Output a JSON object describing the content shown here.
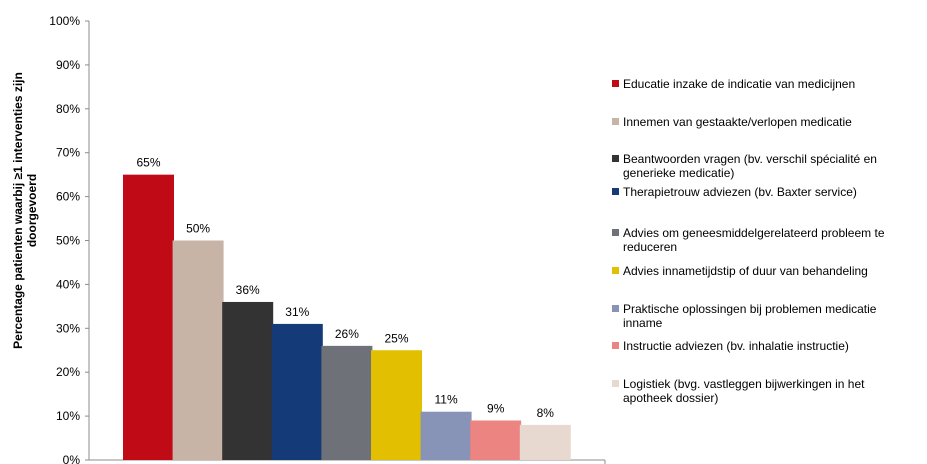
{
  "chart_data": {
    "type": "bar",
    "title": "",
    "xlabel": "",
    "ylabel": "Percentage patienten waarbij ≥1 interventies zijn doorgevoerd",
    "ylim": [
      0,
      100
    ],
    "yticks": [
      "0%",
      "10%",
      "20%",
      "30%",
      "40%",
      "50%",
      "60%",
      "70%",
      "80%",
      "90%",
      "100%"
    ],
    "grid": false,
    "legend_position": "right",
    "categories": [
      "Educatie inzake de indicatie van medicijnen",
      "Innemen van gestaakte/verlopen medicatie",
      "Beantwoorden vragen (bv. verschil spécialité en generieke medicatie)",
      "Therapietrouw adviezen (bv. Baxter service)",
      "Advies om geneesmiddelgerelateerd probleem te reduceren",
      "Advies innametijdstip of duur van behandeling",
      "Praktische oplossingen bij problemen medicatie inname",
      "Instructie adviezen (bv. inhalatie instructie)",
      "Logistiek (bvg. vastleggen bijwerkingen in het apotheek dossier)"
    ],
    "values": [
      65,
      50,
      36,
      31,
      26,
      25,
      11,
      9,
      8
    ],
    "data_labels": [
      "65%",
      "50%",
      "36%",
      "31%",
      "26%",
      "25%",
      "11%",
      "9%",
      "8%"
    ],
    "colors": [
      "#c00a16",
      "#c8b4a6",
      "#333333",
      "#143a78",
      "#6e7177",
      "#e2bf00",
      "#8794b8",
      "#ec8482",
      "#e7d9cf"
    ]
  },
  "legend": {
    "lines": [
      [
        "Educatie inzake de indicatie van medicijnen"
      ],
      [
        "Innemen van gestaakte/verlopen medicatie"
      ],
      [
        "Beantwoorden vragen (bv. verschil spécialité en",
        "generieke medicatie)"
      ],
      [
        "Therapietrouw adviezen (bv. Baxter service)"
      ],
      [
        "Advies om geneesmiddelgerelateerd probleem te",
        "reduceren"
      ],
      [
        "Advies innametijdstip of duur van behandeling"
      ],
      [
        "Praktische oplossingen bij problemen medicatie",
        "inname"
      ],
      [
        "Instructie adviezen (bv. inhalatie instructie)"
      ],
      [
        "Logistiek (bvg. vastleggen bijwerkingen in het",
        "apotheek dossier)"
      ]
    ]
  }
}
